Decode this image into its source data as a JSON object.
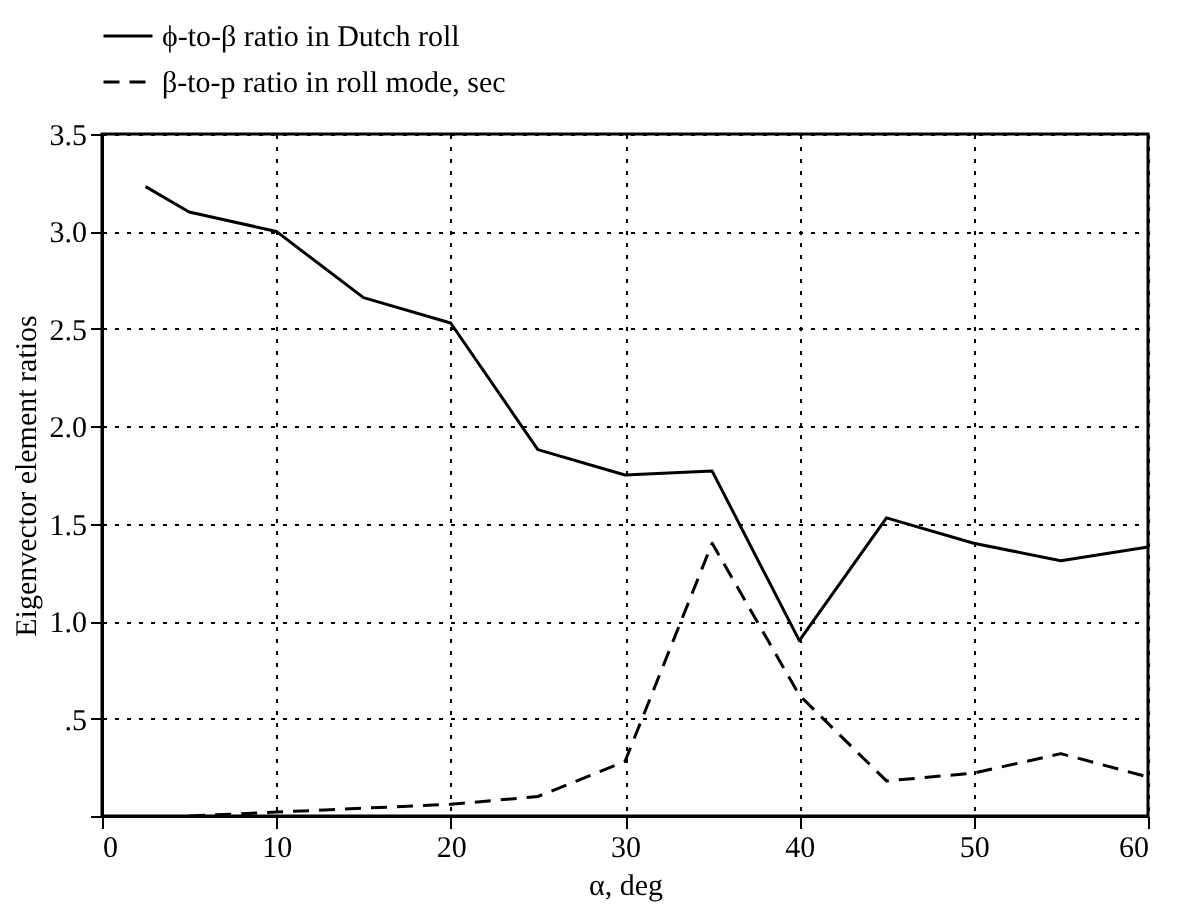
{
  "chart_data": {
    "type": "line",
    "xlabel": "α, deg",
    "ylabel": "Eigenvector element ratios",
    "xlim": [
      0,
      60
    ],
    "xticks": [
      0,
      10,
      20,
      30,
      40,
      50,
      60
    ],
    "ylim": [
      0,
      3.5
    ],
    "yticks": [
      {
        "value": 0,
        "label": null
      },
      {
        "value": 0.5,
        "label": ".5"
      },
      {
        "value": 1,
        "label": "1.0"
      },
      {
        "value": 1.5,
        "label": "1.5"
      },
      {
        "value": 2,
        "label": "2.0"
      },
      {
        "value": 2.5,
        "label": "2.5"
      },
      {
        "value": 3,
        "label": "3.0"
      },
      {
        "value": 3.5,
        "label": "3.5"
      }
    ],
    "grid": true,
    "legend": "top",
    "series": [
      {
        "name": "ϕ-to-β ratio in Dutch roll",
        "color": "#000000",
        "line_style": "solid",
        "x": [
          2.5,
          5,
          10,
          15,
          20,
          25,
          30,
          35,
          40,
          45,
          50,
          55,
          60
        ],
        "values": [
          3.23,
          3.1,
          3.0,
          2.66,
          2.53,
          1.88,
          1.75,
          1.77,
          0.9,
          1.53,
          1.4,
          1.31,
          1.38
        ]
      },
      {
        "name": "β-to-p ratio in roll mode, sec",
        "color": "#000000",
        "line_style": "dashed",
        "x": [
          5,
          10,
          15,
          20,
          25,
          30,
          35,
          40,
          45,
          50,
          55,
          60
        ],
        "values": [
          0.0,
          0.02,
          0.04,
          0.06,
          0.1,
          0.28,
          1.4,
          0.62,
          0.18,
          0.22,
          0.32,
          0.2
        ]
      }
    ]
  }
}
